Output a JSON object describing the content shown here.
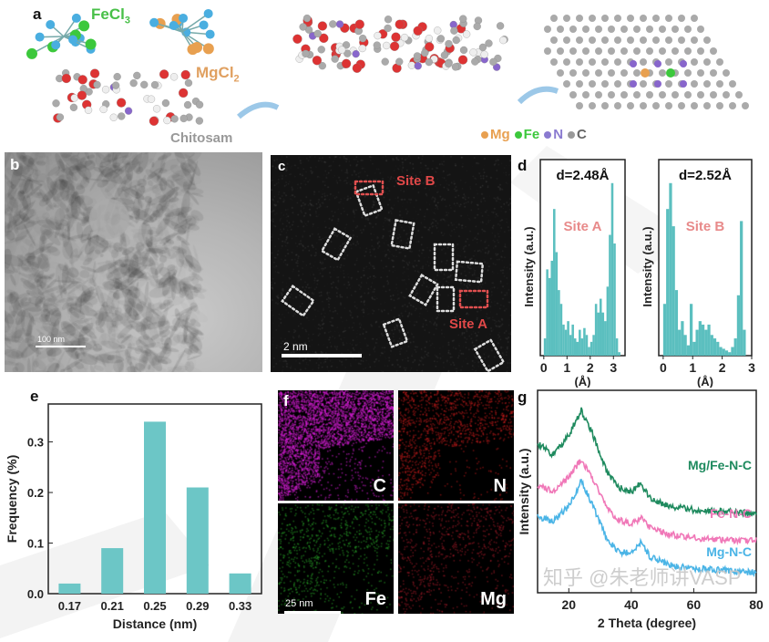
{
  "panels": {
    "a": {
      "label": "a",
      "fecl3": "FeCl",
      "fecl3_sub": "3",
      "mgcl2": "MgCl",
      "mgcl2_sub": "2",
      "chitosam": "Chitosam",
      "legend": [
        {
          "text": "Mg",
          "color": "#e8a050"
        },
        {
          "text": "Fe",
          "color": "#3cc83c"
        },
        {
          "text": "N",
          "color": "#8a7ad0"
        },
        {
          "text": "C",
          "color": "#999999"
        }
      ]
    },
    "b": {
      "label": "b",
      "scale_bar": "100 nm"
    },
    "c": {
      "label": "c",
      "site_b": "Site B",
      "site_a": "Site A",
      "scale_bar": "2 nm"
    },
    "d": {
      "label": "d"
    },
    "e": {
      "label": "e"
    },
    "f": {
      "label": "f",
      "scale_bar": "25 nm",
      "elements": [
        {
          "name": "C",
          "color": "#e020e0"
        },
        {
          "name": "N",
          "color": "#e02020"
        },
        {
          "name": "Fe",
          "color": "#30c030"
        },
        {
          "name": "Mg",
          "color": "#c02030"
        }
      ]
    },
    "g": {
      "label": "g"
    }
  },
  "watermark": "知乎 @朱老师讲VASP",
  "chart_data": [
    {
      "id": "d-site-a",
      "type": "bar",
      "title": "d=2.48Å",
      "annotation": "Site A",
      "xlabel": "(Å)",
      "ylabel": "Intensity (a.u.)",
      "xlim": [
        -0.15,
        3.5
      ],
      "xticks": [
        "0",
        "1",
        "2",
        "3"
      ],
      "bin_width": 0.1,
      "color": "#5bbfbf",
      "x": [
        0,
        0.1,
        0.2,
        0.3,
        0.4,
        0.5,
        0.6,
        0.7,
        0.8,
        0.9,
        1.0,
        1.1,
        1.2,
        1.3,
        1.4,
        1.5,
        1.6,
        1.7,
        1.8,
        1.9,
        2.0,
        2.1,
        2.2,
        2.3,
        2.4,
        2.5,
        2.6,
        2.7,
        2.8,
        2.9,
        3.0,
        3.1,
        3.2
      ],
      "values": [
        0.1,
        0.5,
        0.45,
        0.55,
        0.85,
        0.6,
        0.38,
        0.3,
        0.18,
        0.15,
        0.2,
        0.12,
        0.18,
        0.1,
        0.08,
        0.15,
        0.1,
        0.16,
        0.12,
        0.05,
        0.08,
        0.12,
        0.3,
        0.25,
        0.33,
        0.25,
        0.2,
        0.4,
        0.7,
        1.0,
        0.65,
        0.1,
        0.02
      ]
    },
    {
      "id": "d-site-b",
      "type": "bar",
      "title": "d=2.52Å",
      "annotation": "Site B",
      "xlabel": "(Å)",
      "ylabel": "Intensity (a.u.)",
      "xlim": [
        -0.15,
        3.0
      ],
      "xticks": [
        "0",
        "1",
        "2",
        "3"
      ],
      "bin_width": 0.1,
      "color": "#5bbfbf",
      "x": [
        0,
        0.1,
        0.2,
        0.3,
        0.4,
        0.5,
        0.6,
        0.7,
        0.8,
        0.9,
        1.0,
        1.1,
        1.2,
        1.3,
        1.4,
        1.5,
        1.6,
        1.7,
        1.8,
        1.9,
        2.0,
        2.1,
        2.2,
        2.3,
        2.4,
        2.5,
        2.6,
        2.7
      ],
      "values": [
        0.3,
        0.85,
        1.0,
        0.75,
        0.38,
        0.15,
        0.2,
        0.12,
        0.06,
        0.3,
        0.08,
        0.15,
        0.2,
        0.18,
        0.15,
        0.18,
        0.12,
        0.1,
        0.08,
        0.05,
        0.04,
        0.03,
        0.02,
        0.05,
        0.1,
        0.35,
        0.78,
        0.15
      ]
    },
    {
      "id": "e",
      "type": "bar",
      "xlabel": "Distance (nm)",
      "ylabel": "Frequency (%)",
      "color": "#6cc6c6",
      "categories": [
        "0.17",
        "0.21",
        "0.25",
        "0.29",
        "0.33"
      ],
      "values": [
        0.02,
        0.09,
        0.34,
        0.21,
        0.04
      ],
      "ylim": [
        0,
        0.375
      ],
      "yticks": [
        "0.0",
        "0.1",
        "0.2",
        "0.3"
      ]
    },
    {
      "id": "g",
      "type": "line",
      "xlabel": "2 Theta (degree)",
      "ylabel": "Intensity (a.u.)",
      "xlim": [
        10,
        80
      ],
      "xticks": [
        "20",
        "40",
        "60",
        "80"
      ],
      "x": [
        10,
        15,
        20,
        24,
        28,
        32,
        36,
        40,
        43,
        46,
        50,
        55,
        60,
        70,
        80
      ],
      "series": [
        {
          "name": "Mg/Fe-N-C",
          "color": "#1e8a5e",
          "values": [
            0.74,
            0.68,
            0.78,
            0.9,
            0.77,
            0.6,
            0.52,
            0.5,
            0.54,
            0.47,
            0.44,
            0.42,
            0.41,
            0.4,
            0.39
          ]
        },
        {
          "name": "Fe-N-C",
          "color": "#f078b8",
          "values": [
            0.53,
            0.5,
            0.57,
            0.66,
            0.55,
            0.42,
            0.36,
            0.34,
            0.37,
            0.32,
            0.3,
            0.28,
            0.27,
            0.26,
            0.26
          ]
        },
        {
          "name": "Mg-N-C",
          "color": "#4ab4e6",
          "values": [
            0.38,
            0.35,
            0.43,
            0.55,
            0.42,
            0.27,
            0.2,
            0.2,
            0.25,
            0.18,
            0.15,
            0.13,
            0.12,
            0.11,
            0.1
          ]
        }
      ]
    }
  ]
}
